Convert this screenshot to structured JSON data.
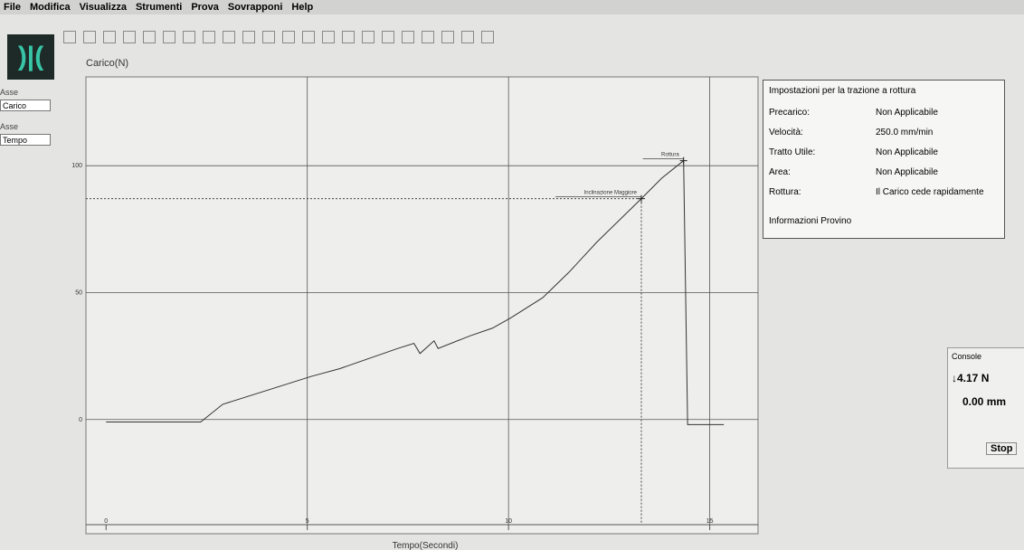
{
  "menu": [
    "File",
    "Modifica",
    "Visualizza",
    "Strumenti",
    "Prova",
    "Sovrapponi",
    "Help"
  ],
  "left_panel": {
    "axes": [
      {
        "label": "Asse",
        "selected": "Carico"
      },
      {
        "label": "Asse",
        "selected": "Tempo"
      }
    ]
  },
  "chart_data": {
    "type": "line",
    "y_label": "Carico(N)",
    "x_label": "Tempo(Secondi)",
    "x": [
      0,
      2.35,
      2.9,
      5.1,
      5.8,
      7.25,
      7.65,
      7.8,
      8.15,
      8.25,
      9.05,
      9.6,
      10.05,
      10.85,
      11.5,
      12.2,
      13.3,
      13.8,
      14.35,
      14.45,
      15.35
    ],
    "values": [
      -1,
      -1,
      6,
      17,
      20,
      28,
      30,
      26,
      31,
      28,
      33,
      36,
      40,
      48,
      58,
      70,
      87,
      95,
      102,
      -2,
      -2
    ],
    "color": "#333333",
    "xlim": [
      -0.5,
      16.2
    ],
    "ylim": [
      -45,
      135
    ],
    "xticks": [
      0,
      5,
      10,
      15
    ],
    "yticks": [
      0,
      50,
      100
    ],
    "grid": true,
    "annotations": [
      {
        "label": "Rottura",
        "x": 14.35,
        "y": 102
      },
      {
        "label": "Inclinazione Maggiore",
        "x": 13.3,
        "y": 87
      }
    ]
  },
  "settings": {
    "title": "Impostazioni per la trazione a rottura",
    "rows": [
      [
        "Precarico:",
        "Non Applicabile"
      ],
      [
        "Velocità:",
        "250.0 mm/min"
      ],
      [
        "Tratto Utile:",
        "Non Applicabile"
      ],
      [
        "Area:",
        "Non Applicabile"
      ],
      [
        "Rottura:",
        "Il Carico cede rapidamente"
      ]
    ],
    "footer": "Informazioni Provino"
  },
  "console": {
    "title": "Console",
    "load": "↓4.17 N",
    "position": "0.00 mm",
    "stop": "Stop"
  }
}
